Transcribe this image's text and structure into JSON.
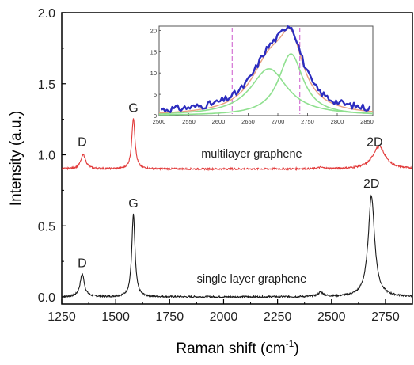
{
  "chart_data": [
    {
      "type": "line",
      "xlabel": "Raman shift (cm",
      "xlabel_sup": "-1",
      "xlabel_tail": ")",
      "ylabel": "Intensity (a.u.)",
      "xlim": [
        1250,
        2875
      ],
      "ylim": [
        -0.05,
        2.0
      ],
      "xticks": [
        1250,
        1500,
        1750,
        2000,
        2250,
        2500,
        2750
      ],
      "yticks": [
        0.0,
        0.5,
        1.0,
        1.5,
        2.0
      ],
      "ytick_labels": [
        "0.0",
        "0.5",
        "1.0",
        "1.5",
        "2.0"
      ],
      "series": [
        {
          "name": "single layer graphene",
          "color": "#1a1a1a",
          "baseline": 0.0,
          "peaks": [
            {
              "label": "D",
              "center": 1345,
              "height": 0.16,
              "width": 12
            },
            {
              "label": "G",
              "center": 1582,
              "height": 0.58,
              "width": 9
            },
            {
              "label": "",
              "center": 2450,
              "height": 0.03,
              "width": 15
            },
            {
              "label": "2D",
              "center": 2685,
              "height": 0.71,
              "width": 18
            }
          ]
        },
        {
          "name": "multilayer graphene",
          "color": "#e23b3b",
          "baseline": 0.9,
          "peaks": [
            {
              "label": "D",
              "center": 1350,
              "height": 0.1,
              "width": 14
            },
            {
              "label": "G",
              "center": 1582,
              "height": 0.36,
              "width": 9
            },
            {
              "label": "",
              "center": 2450,
              "height": 0.01,
              "width": 15
            },
            {
              "label": "2D",
              "center": 2720,
              "height": 0.16,
              "width": 35
            }
          ]
        }
      ],
      "peak_labels": [
        {
          "text": "D",
          "x": 1345,
          "y": 0.21
        },
        {
          "text": "G",
          "x": 1582,
          "y": 0.63
        },
        {
          "text": "2D",
          "x": 2685,
          "y": 0.77
        },
        {
          "text": "D",
          "x": 1345,
          "y": 1.06
        },
        {
          "text": "G",
          "x": 1582,
          "y": 1.3
        },
        {
          "text": "2D",
          "x": 2700,
          "y": 1.06
        }
      ],
      "annotations": [
        {
          "text": "multilayer graphene",
          "x": 2130,
          "y": 0.98
        },
        {
          "text": "single layer graphene",
          "x": 2130,
          "y": 0.1
        }
      ]
    },
    {
      "type": "line",
      "xlim": [
        2500,
        2860
      ],
      "ylim": [
        0,
        21
      ],
      "xticks": [
        2500,
        2550,
        2600,
        2650,
        2700,
        2750,
        2800,
        2850
      ],
      "yticks": [
        0,
        5,
        10,
        15,
        20
      ],
      "dashed_lines_x": [
        2623,
        2737
      ],
      "series": [
        {
          "name": "",
          "color": "#2d2dbf",
          "kind": "data",
          "components": [
            {
              "center": 2685,
              "amp": 11.0,
              "width": 38
            },
            {
              "center": 2722,
              "amp": 14.5,
              "width": 25
            }
          ]
        },
        {
          "name": "",
          "color": "#8fe08f",
          "kind": "component",
          "center": 2685,
          "amp": 11.0,
          "width": 38
        },
        {
          "name": "",
          "color": "#8fe08f",
          "kind": "component",
          "center": 2722,
          "amp": 14.5,
          "width": 25
        },
        {
          "name": "",
          "color": "#e8a080",
          "kind": "fit",
          "components": [
            {
              "center": 2685,
              "amp": 11.0,
              "width": 38
            },
            {
              "center": 2722,
              "amp": 14.5,
              "width": 25
            }
          ]
        }
      ]
    }
  ]
}
